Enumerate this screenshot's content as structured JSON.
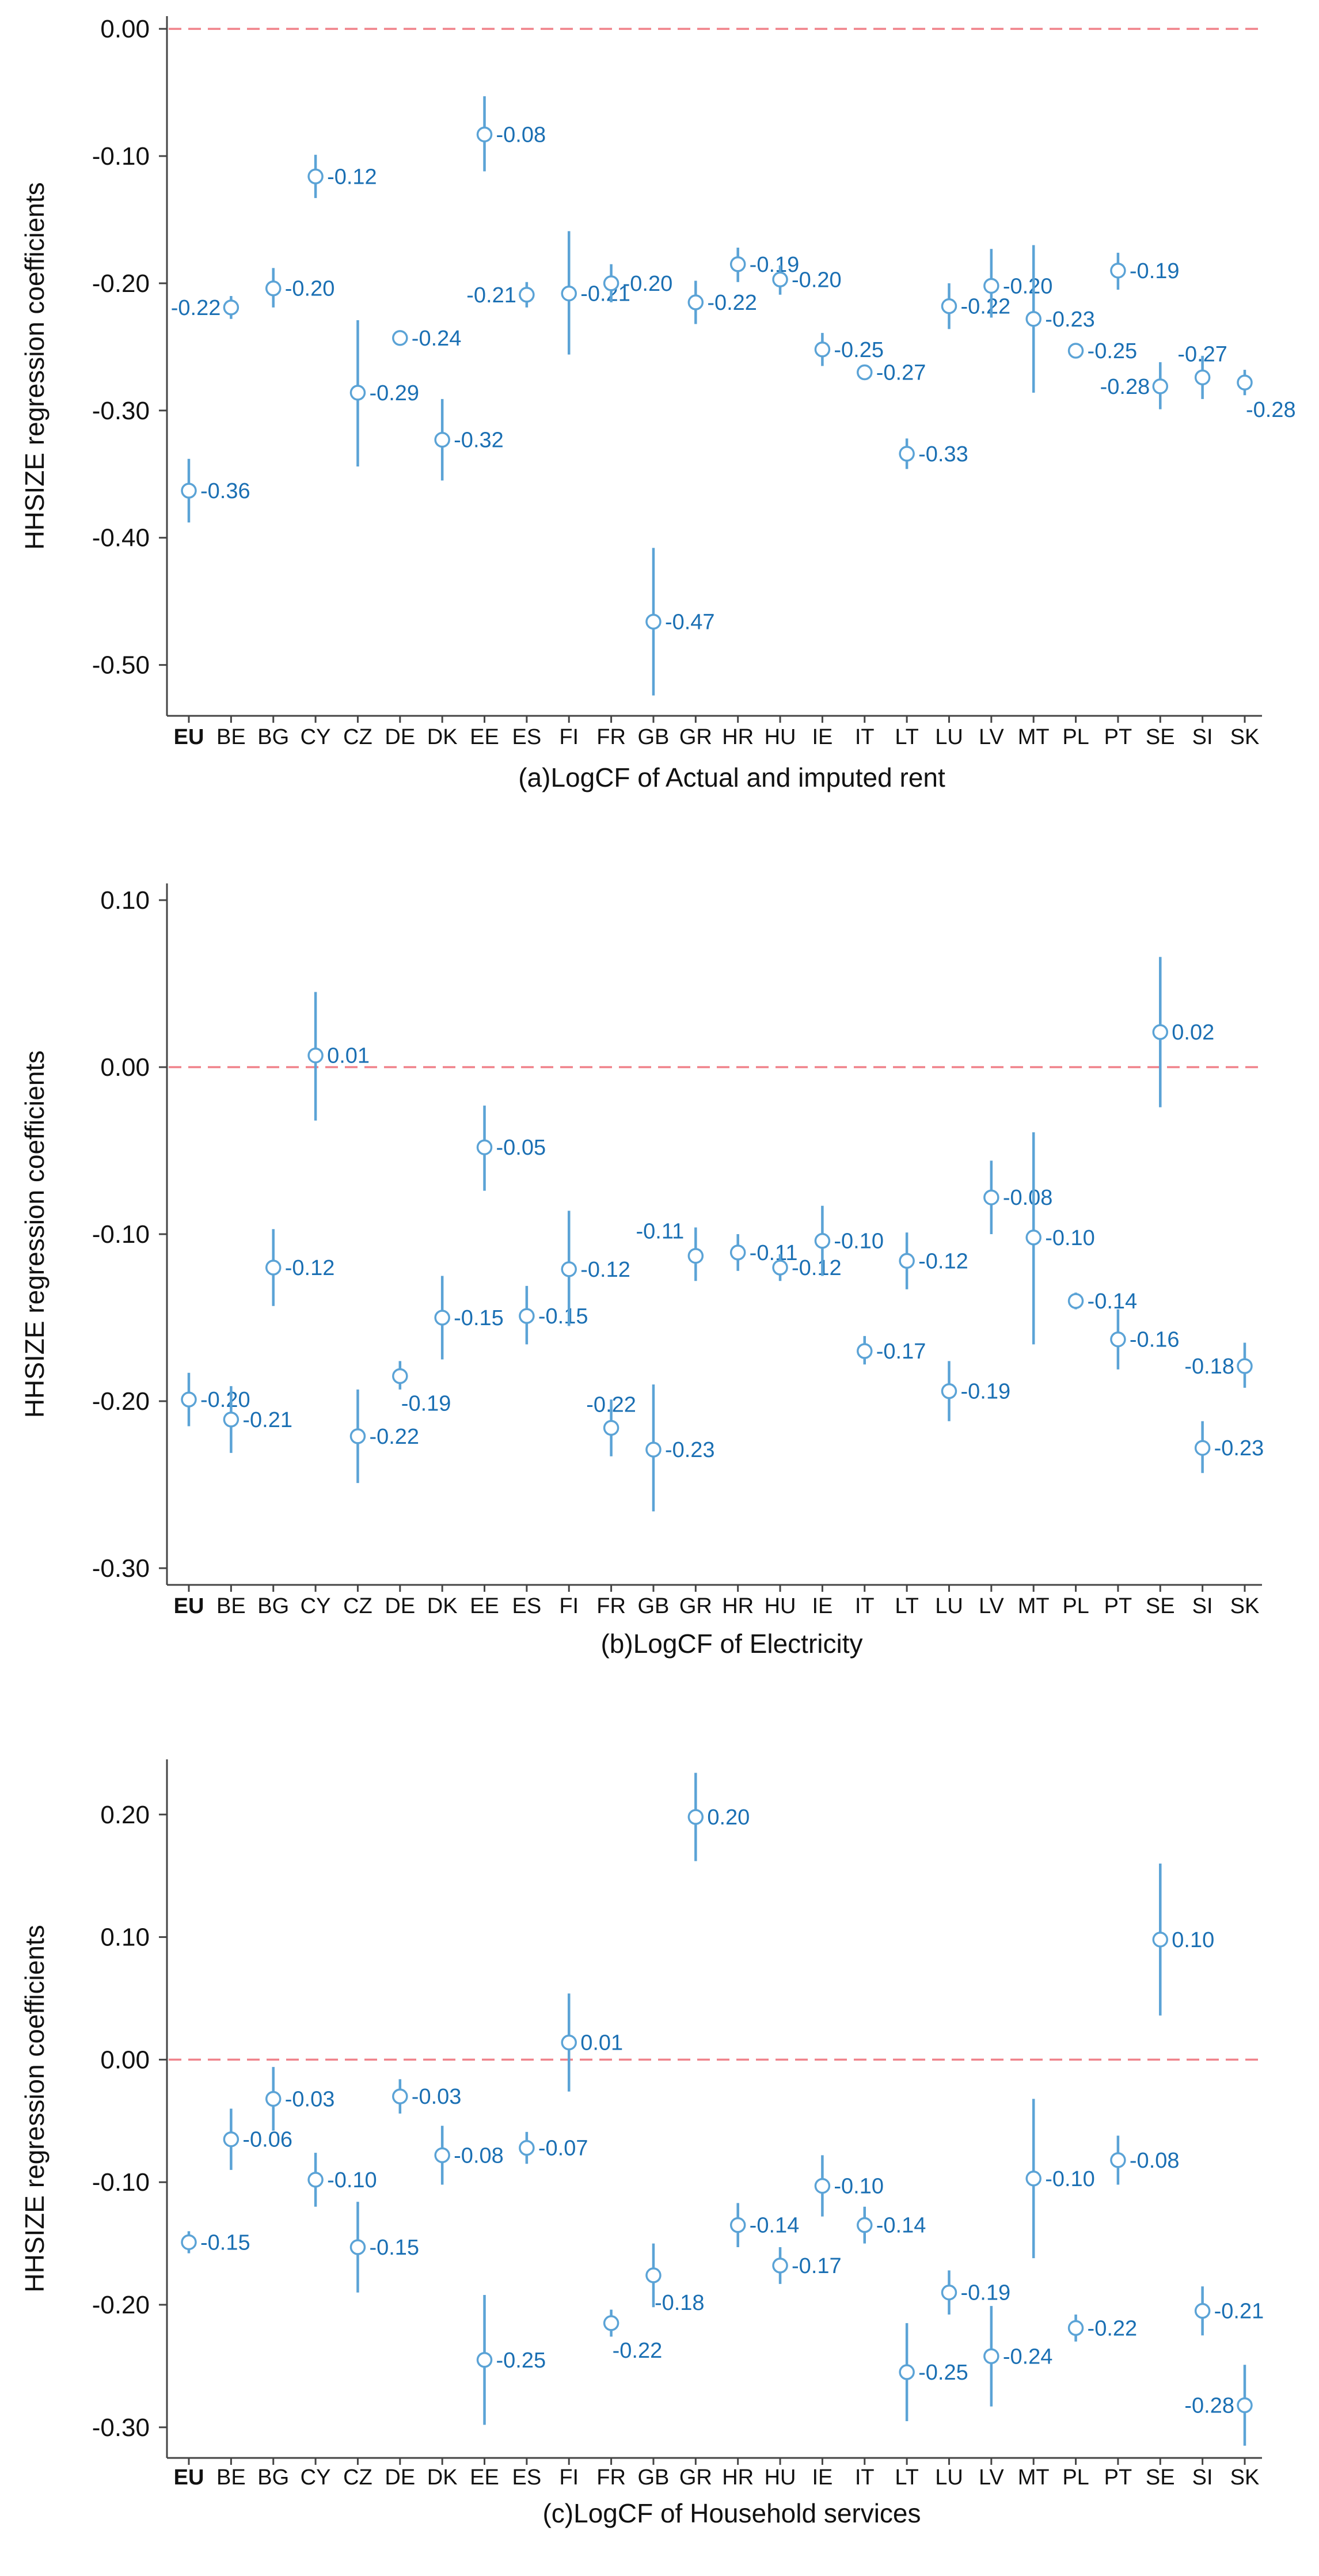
{
  "chart_data": [
    {
      "type": "scatter",
      "title": "(a)LogCF of Actual and imputed rent",
      "xlabel": "(a)LogCF of Actual and imputed rent",
      "ylabel": "HHSIZE regression coefficients",
      "ylim": [
        -0.54,
        0.01
      ],
      "yticks": [
        0.0,
        -0.1,
        -0.2,
        -0.3,
        -0.4,
        -0.5
      ],
      "ytick_labels": [
        "0.00",
        "-0.10",
        "-0.20",
        "-0.30",
        "-0.40",
        "-0.50"
      ],
      "reference_line": 0.0,
      "bold_category": "EU",
      "categories": [
        "EU",
        "BE",
        "BG",
        "CY",
        "CZ",
        "DE",
        "DK",
        "EE",
        "ES",
        "FI",
        "FR",
        "GB",
        "GR",
        "HR",
        "HU",
        "IE",
        "IT",
        "LT",
        "LU",
        "LV",
        "MT",
        "PL",
        "PT",
        "SE",
        "SI",
        "SK"
      ],
      "values": [
        -0.363,
        -0.219,
        -0.204,
        -0.116,
        -0.286,
        -0.243,
        -0.323,
        -0.083,
        -0.209,
        -0.208,
        -0.2,
        -0.466,
        -0.215,
        -0.185,
        -0.197,
        -0.252,
        -0.27,
        -0.334,
        -0.218,
        -0.202,
        -0.228,
        -0.253,
        -0.19,
        -0.281,
        -0.274,
        -0.278
      ],
      "ci_lower": [
        -0.388,
        -0.228,
        -0.219,
        -0.133,
        -0.344,
        -0.249,
        -0.355,
        -0.112,
        -0.219,
        -0.256,
        -0.215,
        -0.524,
        -0.232,
        -0.199,
        -0.209,
        -0.265,
        -0.276,
        -0.346,
        -0.236,
        -0.227,
        -0.286,
        -0.258,
        -0.205,
        -0.299,
        -0.291,
        -0.288
      ],
      "ci_upper": [
        -0.338,
        -0.21,
        -0.188,
        -0.099,
        -0.229,
        -0.237,
        -0.291,
        -0.053,
        -0.199,
        -0.159,
        -0.185,
        -0.408,
        -0.198,
        -0.172,
        -0.186,
        -0.239,
        -0.264,
        -0.322,
        -0.2,
        -0.173,
        -0.17,
        -0.248,
        -0.176,
        -0.262,
        -0.257,
        -0.268
      ],
      "point_labels": [
        "-0.36",
        "-0.22",
        "-0.20",
        "-0.12",
        "-0.29",
        "-0.24",
        "-0.32",
        "-0.08",
        "-0.21",
        "-0.21",
        "-0.20",
        "-0.47",
        "-0.22",
        "-0.19",
        "-0.20",
        "-0.25",
        "-0.27",
        "-0.33",
        "-0.22",
        "-0.20",
        "-0.23",
        "-0.25",
        "-0.19",
        "-0.28",
        "-0.27",
        "-0.28"
      ],
      "label_positions": [
        "right",
        "left",
        "right",
        "right",
        "right",
        "right",
        "right",
        "right",
        "left",
        "right",
        "right",
        "right",
        "right",
        "right",
        "right",
        "right",
        "right",
        "right",
        "right",
        "right",
        "right",
        "right",
        "right",
        "left",
        "above",
        "below"
      ]
    },
    {
      "type": "scatter",
      "title": "(b)LogCF of Electricity",
      "xlabel": "(b)LogCF of Electricity",
      "ylabel": "HHSIZE regression coefficients",
      "ylim": [
        -0.31,
        0.11
      ],
      "yticks": [
        0.1,
        0.0,
        -0.1,
        -0.2,
        -0.3
      ],
      "ytick_labels": [
        "0.10",
        "0.00",
        "-0.10",
        "-0.20",
        "-0.30"
      ],
      "reference_line": 0.0,
      "bold_category": "EU",
      "categories": [
        "EU",
        "BE",
        "BG",
        "CY",
        "CZ",
        "DE",
        "DK",
        "EE",
        "ES",
        "FI",
        "FR",
        "GB",
        "GR",
        "HR",
        "HU",
        "IE",
        "IT",
        "LT",
        "LU",
        "LV",
        "MT",
        "PL",
        "PT",
        "SE",
        "SI",
        "SK"
      ],
      "values": [
        -0.199,
        -0.211,
        -0.12,
        0.007,
        -0.221,
        -0.185,
        -0.15,
        -0.048,
        -0.149,
        -0.121,
        -0.216,
        -0.229,
        -0.113,
        -0.111,
        -0.12,
        -0.104,
        -0.17,
        -0.116,
        -0.194,
        -0.078,
        -0.102,
        -0.14,
        -0.163,
        0.021,
        -0.228,
        -0.179
      ],
      "ci_lower": [
        -0.215,
        -0.231,
        -0.143,
        -0.032,
        -0.249,
        -0.193,
        -0.175,
        -0.074,
        -0.166,
        -0.155,
        -0.233,
        -0.266,
        -0.128,
        -0.122,
        -0.128,
        -0.125,
        -0.178,
        -0.133,
        -0.212,
        -0.1,
        -0.166,
        -0.145,
        -0.181,
        -0.024,
        -0.243,
        -0.192
      ],
      "ci_upper": [
        -0.183,
        -0.191,
        -0.097,
        0.045,
        -0.193,
        -0.176,
        -0.125,
        -0.023,
        -0.131,
        -0.086,
        -0.199,
        -0.19,
        -0.096,
        -0.1,
        -0.112,
        -0.083,
        -0.161,
        -0.099,
        -0.176,
        -0.056,
        -0.039,
        -0.135,
        -0.145,
        0.066,
        -0.212,
        -0.165
      ],
      "point_labels": [
        "-0.20",
        "-0.21",
        "-0.12",
        "0.01",
        "-0.22",
        "-0.19",
        "-0.15",
        "-0.05",
        "-0.15",
        "-0.12",
        "-0.22",
        "-0.23",
        "-0.11",
        "-0.11",
        "-0.12",
        "-0.10",
        "-0.17",
        "-0.12",
        "-0.19",
        "-0.08",
        "-0.10",
        "-0.14",
        "-0.16",
        "0.02",
        "-0.23",
        "-0.18"
      ],
      "label_positions": [
        "right",
        "right",
        "right",
        "right",
        "right",
        "below",
        "right",
        "right",
        "right",
        "right",
        "above",
        "right",
        "above-left",
        "right",
        "right",
        "right",
        "right",
        "right",
        "right",
        "right",
        "right",
        "right",
        "right",
        "right",
        "right",
        "left"
      ]
    },
    {
      "type": "scatter",
      "title": "(c)LogCF of Household services",
      "xlabel": "(c)LogCF of Household services",
      "ylabel": "HHSIZE regression coefficients",
      "ylim": [
        -0.325,
        0.245
      ],
      "yticks": [
        0.2,
        0.1,
        0.0,
        -0.1,
        -0.2,
        -0.3
      ],
      "ytick_labels": [
        "0.20",
        "0.10",
        "0.00",
        "-0.10",
        "-0.20",
        "-0.30"
      ],
      "reference_line": 0.0,
      "bold_category": "EU",
      "categories": [
        "EU",
        "BE",
        "BG",
        "CY",
        "CZ",
        "DE",
        "DK",
        "EE",
        "ES",
        "FI",
        "FR",
        "GB",
        "GR",
        "HR",
        "HU",
        "IE",
        "IT",
        "LT",
        "LU",
        "LV",
        "MT",
        "PL",
        "PT",
        "SE",
        "SI",
        "SK"
      ],
      "values": [
        -0.149,
        -0.065,
        -0.032,
        -0.098,
        -0.153,
        -0.03,
        -0.078,
        -0.245,
        -0.072,
        0.014,
        -0.215,
        -0.176,
        0.198,
        -0.135,
        -0.168,
        -0.103,
        -0.135,
        -0.255,
        -0.19,
        -0.242,
        -0.097,
        -0.219,
        -0.082,
        0.098,
        -0.205,
        -0.282
      ],
      "ci_lower": [
        -0.158,
        -0.09,
        -0.058,
        -0.12,
        -0.19,
        -0.044,
        -0.102,
        -0.298,
        -0.085,
        -0.026,
        -0.226,
        -0.202,
        0.162,
        -0.153,
        -0.183,
        -0.128,
        -0.15,
        -0.295,
        -0.208,
        -0.283,
        -0.162,
        -0.23,
        -0.102,
        0.036,
        -0.225,
        -0.315
      ],
      "ci_upper": [
        -0.14,
        -0.04,
        -0.006,
        -0.076,
        -0.116,
        -0.016,
        -0.054,
        -0.192,
        -0.059,
        0.054,
        -0.204,
        -0.15,
        0.234,
        -0.117,
        -0.153,
        -0.078,
        -0.12,
        -0.215,
        -0.172,
        -0.201,
        -0.032,
        -0.208,
        -0.062,
        0.16,
        -0.185,
        -0.249
      ],
      "point_labels": [
        "-0.15",
        "-0.06",
        "-0.03",
        "-0.10",
        "-0.15",
        "-0.03",
        "-0.08",
        "-0.25",
        "-0.07",
        "0.01",
        "-0.22",
        "-0.18",
        "0.20",
        "-0.14",
        "-0.17",
        "-0.10",
        "-0.14",
        "-0.25",
        "-0.19",
        "-0.24",
        "-0.10",
        "-0.22",
        "-0.08",
        "0.10",
        "-0.21",
        "-0.28"
      ],
      "label_positions": [
        "right",
        "right",
        "right",
        "right",
        "right",
        "right",
        "right",
        "right",
        "right",
        "right",
        "below",
        "below",
        "right",
        "right",
        "right",
        "right",
        "right",
        "right",
        "right",
        "right",
        "right",
        "right",
        "right",
        "right",
        "right",
        "left"
      ]
    }
  ],
  "colors": {
    "marker": "#5ba3d6",
    "label": "#1a6fb3",
    "reference_line": "#f0828a",
    "axis": "#444444",
    "text": "#111111"
  }
}
